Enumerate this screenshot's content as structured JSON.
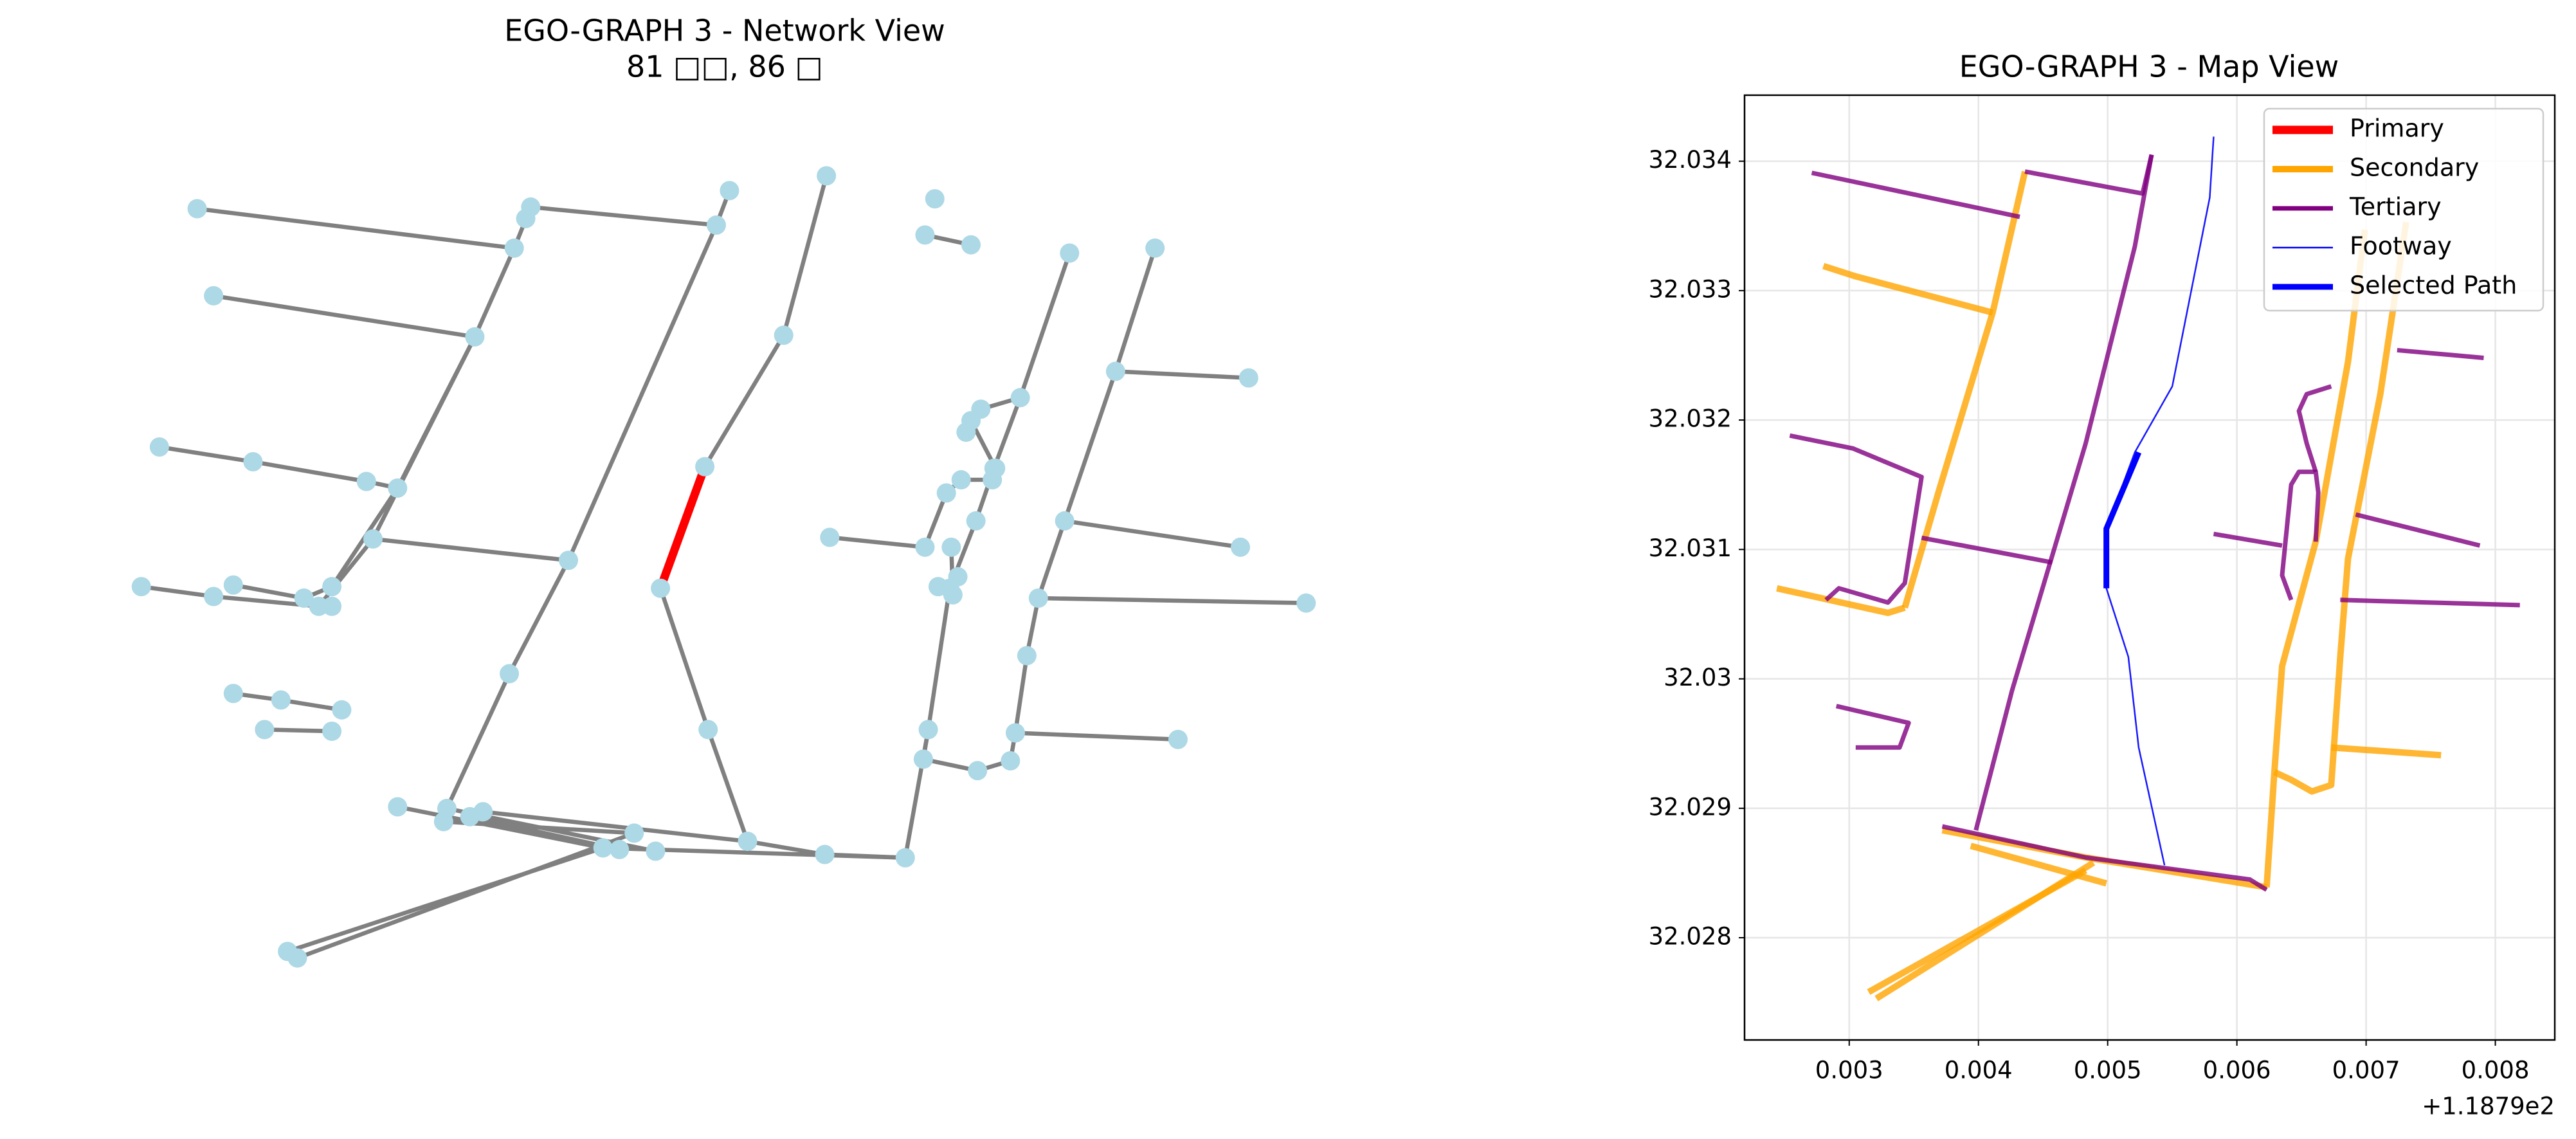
{
  "chart_data": [
    {
      "type": "network",
      "title": "EGO-GRAPH 3 - Network View",
      "subtitle": "81 □□, 86 □"
    },
    {
      "type": "line",
      "title": "EGO-GRAPH 3 - Map View",
      "xlim": [
        0.00219,
        0.00846
      ],
      "ylim": [
        32.02721,
        32.03451
      ],
      "xticks": [
        0.003,
        0.004,
        0.005,
        0.006,
        0.007,
        0.008
      ],
      "yticks": [
        32.028,
        32.029,
        32.03,
        32.031,
        32.032,
        32.033,
        32.034
      ],
      "x_offset": "+1.1879e2",
      "grid": true,
      "legend": "upper right",
      "series": [
        {
          "name": "Primary",
          "color": "#ff0000",
          "segments": []
        },
        {
          "name": "Secondary",
          "color": "#ffa500",
          "segments": [
            {
              "x": [
                0.00436,
                0.00411,
                0.00369,
                0.00343
              ],
              "y": [
                32.03392,
                32.03283,
                32.03144,
                32.03055
              ]
            },
            {
              "x": [
                0.0028,
                0.00305,
                0.00411
              ],
              "y": [
                32.03319,
                32.03311,
                32.03283
              ]
            },
            {
              "x": [
                0.00244,
                0.0033,
                0.00343
              ],
              "y": [
                32.0307,
                32.03051,
                32.03055
              ]
            },
            {
              "x": [
                0.00372,
                0.00483,
                0.00623
              ],
              "y": [
                32.02883,
                32.02862,
                32.02839
              ]
            },
            {
              "x": [
                0.00394,
                0.00499
              ],
              "y": [
                32.02871,
                32.02842
              ]
            },
            {
              "x": [
                0.00315,
                0.00483
              ],
              "y": [
                32.02758,
                32.02852
              ]
            },
            {
              "x": [
                0.00321,
                0.00489
              ],
              "y": [
                32.02753,
                32.02858
              ]
            },
            {
              "x": [
                0.00623,
                0.00629,
                0.00635,
                0.00661,
                0.00686,
                0.00699
              ],
              "y": [
                32.02839,
                32.02928,
                32.0301,
                32.03106,
                32.03245,
                32.03347
              ]
            },
            {
              "x": [
                0.00731,
                0.00711,
                0.00686,
                0.0068,
                0.00673,
                0.00658,
                0.00642,
                0.00629
              ],
              "y": [
                32.03353,
                32.0322,
                32.03093,
                32.03017,
                32.02918,
                32.02913,
                32.02922,
                32.02928
              ]
            },
            {
              "x": [
                0.00673,
                0.00758
              ],
              "y": [
                32.02947,
                32.02941
              ]
            }
          ]
        },
        {
          "name": "Tertiary",
          "color": "#800080",
          "segments": [
            {
              "x": [
                0.00271,
                0.00432
              ],
              "y": [
                32.03391,
                32.03357
              ]
            },
            {
              "x": [
                0.00436,
                0.00527,
                0.00534
              ],
              "y": [
                32.03392,
                32.03375,
                32.03405
              ]
            },
            {
              "x": [
                0.00534,
                0.00521,
                0.00483,
                0.00426,
                0.00398
              ],
              "y": [
                32.03405,
                32.03334,
                32.03182,
                32.02991,
                32.02883
              ]
            },
            {
              "x": [
                0.00254,
                0.00303,
                0.00356,
                0.00343,
                0.0033,
                0.00292,
                0.00282
              ],
              "y": [
                32.03188,
                32.03178,
                32.03156,
                32.03074,
                32.03059,
                32.0307,
                32.03061
              ]
            },
            {
              "x": [
                0.00356,
                0.00457
              ],
              "y": [
                32.03109,
                32.0309
              ]
            },
            {
              "x": [
                0.0029,
                0.00346,
                0.00339,
                0.00305
              ],
              "y": [
                32.02979,
                32.02966,
                32.02947,
                32.02947
              ]
            },
            {
              "x": [
                0.00372,
                0.00483,
                0.0061,
                0.00623
              ],
              "y": [
                32.02886,
                32.02862,
                32.02845,
                32.02837
              ]
            },
            {
              "x": [
                0.00642,
                0.00635,
                0.00642,
                0.00648,
                0.00661,
                0.00663,
                0.00661
              ],
              "y": [
                32.03061,
                32.0308,
                32.0315,
                32.0316,
                32.0316,
                32.03144,
                32.03106
              ]
            },
            {
              "x": [
                0.00582,
                0.00635
              ],
              "y": [
                32.03112,
                32.03103
              ]
            },
            {
              "x": [
                0.00661,
                0.00654,
                0.00648,
                0.00654,
                0.00673
              ],
              "y": [
                32.0316,
                32.03182,
                32.03207,
                32.0322,
                32.03226
              ]
            },
            {
              "x": [
                0.0068,
                0.00819
              ],
              "y": [
                32.03061,
                32.03057
              ]
            },
            {
              "x": [
                0.00692,
                0.00788
              ],
              "y": [
                32.03127,
                32.03103
              ]
            },
            {
              "x": [
                0.00724,
                0.00791
              ],
              "y": [
                32.03254,
                32.03248
              ]
            }
          ]
        },
        {
          "name": "Footway",
          "color": "#0000ff",
          "segments": [
            {
              "x": [
                0.00582,
                0.00579,
                0.0055,
                0.00521,
                0.00499,
                0.00499,
                0.00516,
                0.00524,
                0.00544
              ],
              "y": [
                32.03419,
                32.03372,
                32.03226,
                32.03175,
                32.03116,
                32.0307,
                32.03017,
                32.02947,
                32.02856
              ]
            }
          ]
        },
        {
          "name": "Selected Path",
          "color": "#0000ff",
          "segments": [
            {
              "x": [
                0.00524,
                0.00499,
                0.00499
              ],
              "y": [
                32.03175,
                32.03116,
                32.0307
              ]
            }
          ]
        }
      ]
    }
  ]
}
